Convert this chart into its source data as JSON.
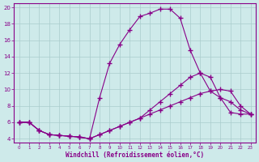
{
  "xlabel": "Windchill (Refroidissement éolien,°C)",
  "bg_color": "#ceeaea",
  "line_color": "#880088",
  "grid_color": "#aacccc",
  "xlim": [
    -0.5,
    23.5
  ],
  "ylim": [
    3.5,
    20.5
  ],
  "xticks": [
    0,
    1,
    2,
    3,
    4,
    5,
    6,
    7,
    8,
    9,
    10,
    11,
    12,
    13,
    14,
    15,
    16,
    17,
    18,
    19,
    20,
    21,
    22,
    23
  ],
  "yticks": [
    4,
    6,
    8,
    10,
    12,
    14,
    16,
    18,
    20
  ],
  "line1_x": [
    0,
    1,
    2,
    3,
    4,
    5,
    6,
    7,
    8,
    9,
    10,
    11,
    12,
    13,
    14,
    15,
    16,
    17,
    18,
    19,
    20,
    21,
    22,
    23
  ],
  "line1_y": [
    6.0,
    6.0,
    5.0,
    4.5,
    4.4,
    4.3,
    4.2,
    4.0,
    9.0,
    13.2,
    15.5,
    17.3,
    18.9,
    19.3,
    19.8,
    19.8,
    18.7,
    14.8,
    12.0,
    9.8,
    9.0,
    7.2,
    7.0,
    7.0
  ],
  "line2_x": [
    0,
    1,
    2,
    3,
    4,
    5,
    6,
    7,
    8,
    9,
    10,
    11,
    12,
    13,
    14,
    15,
    16,
    17,
    18,
    19,
    20,
    21,
    22,
    23
  ],
  "line2_y": [
    6.0,
    6.0,
    5.0,
    4.5,
    4.4,
    4.3,
    4.2,
    4.0,
    4.5,
    5.0,
    5.5,
    6.0,
    6.5,
    7.5,
    8.5,
    9.5,
    10.5,
    11.5,
    12.0,
    11.5,
    9.0,
    8.5,
    7.5,
    7.0
  ],
  "line3_x": [
    0,
    1,
    2,
    3,
    4,
    5,
    6,
    7,
    8,
    9,
    10,
    11,
    12,
    13,
    14,
    15,
    16,
    17,
    18,
    19,
    20,
    21,
    22,
    23
  ],
  "line3_y": [
    6.0,
    6.0,
    5.0,
    4.5,
    4.4,
    4.3,
    4.2,
    4.0,
    4.5,
    5.0,
    5.5,
    6.0,
    6.5,
    7.0,
    7.5,
    8.0,
    8.5,
    9.0,
    9.5,
    9.8,
    10.0,
    9.8,
    8.0,
    7.0
  ]
}
